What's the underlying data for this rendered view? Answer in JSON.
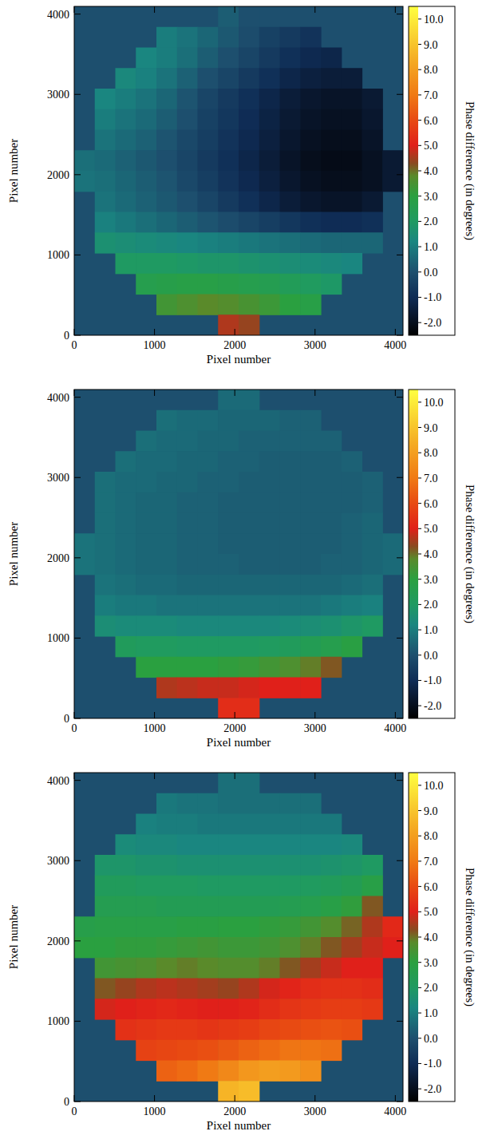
{
  "chart_data": [
    {
      "type": "heatmap",
      "xlabel": "Pixel number",
      "ylabel": "Pixel number",
      "xlim": [
        0,
        4096
      ],
      "ylim": [
        0,
        4096
      ],
      "xticks": [
        0,
        1000,
        2000,
        3000,
        4000
      ],
      "yticks": [
        0,
        1000,
        2000,
        3000,
        4000
      ],
      "x": [
        128,
        384,
        640,
        896,
        1152,
        1408,
        1664,
        1920,
        2176,
        2432,
        2688,
        2944,
        3200,
        3456,
        3712,
        3968
      ],
      "y": [
        3968,
        3712,
        3456,
        3200,
        2944,
        2688,
        2432,
        2176,
        1920,
        1664,
        1408,
        1152,
        896,
        640,
        384,
        128
      ],
      "cells": [
        [
          null,
          null,
          null,
          null,
          null,
          null,
          null,
          0.3,
          0.0,
          null,
          null,
          null,
          null,
          null,
          null,
          null
        ],
        [
          null,
          null,
          null,
          null,
          1.0,
          0.8,
          0.5,
          0.2,
          -0.1,
          -0.4,
          -0.6,
          -0.8,
          null,
          null,
          null,
          null
        ],
        [
          null,
          null,
          null,
          1.2,
          1.0,
          0.7,
          0.3,
          0.0,
          -0.3,
          -0.6,
          -0.9,
          -1.1,
          -1.2,
          null,
          null,
          null
        ],
        [
          null,
          null,
          1.3,
          1.1,
          0.8,
          0.4,
          0.0,
          -0.3,
          -0.6,
          -0.9,
          -1.2,
          -1.4,
          -1.5,
          -1.5,
          null,
          null
        ],
        [
          null,
          1.2,
          1.0,
          0.8,
          0.5,
          0.1,
          -0.3,
          -0.6,
          -0.9,
          -1.2,
          -1.5,
          -1.7,
          -1.8,
          -1.8,
          -1.6,
          null
        ],
        [
          null,
          1.0,
          0.8,
          0.6,
          0.3,
          0.0,
          -0.4,
          -0.7,
          -1.0,
          -1.3,
          -1.6,
          -1.8,
          -1.9,
          -1.9,
          -1.7,
          null
        ],
        [
          null,
          0.8,
          0.6,
          0.4,
          0.1,
          -0.2,
          -0.5,
          -0.8,
          -1.1,
          -1.4,
          -1.7,
          -1.9,
          -2.0,
          -2.0,
          -1.8,
          null
        ],
        [
          0.7,
          0.6,
          0.4,
          0.2,
          0.0,
          -0.3,
          -0.6,
          -0.9,
          -1.2,
          -1.5,
          -1.8,
          -2.0,
          -2.1,
          -2.1,
          -1.9,
          -1.6
        ],
        [
          0.8,
          0.7,
          0.5,
          0.3,
          0.1,
          -0.2,
          -0.5,
          -0.8,
          -1.1,
          -1.4,
          -1.7,
          -1.9,
          -2.0,
          -2.0,
          -1.9,
          -1.6
        ],
        [
          null,
          0.8,
          0.6,
          0.4,
          0.2,
          0.0,
          -0.3,
          -0.6,
          -0.9,
          -1.2,
          -1.5,
          -1.7,
          -1.8,
          -1.8,
          -1.6,
          null
        ],
        [
          null,
          1.1,
          0.9,
          0.7,
          0.5,
          0.3,
          0.1,
          -0.1,
          -0.3,
          -0.5,
          -0.7,
          -0.9,
          -1.0,
          -1.0,
          -0.9,
          null
        ],
        [
          null,
          1.6,
          1.5,
          1.4,
          1.3,
          1.2,
          1.1,
          1.0,
          0.9,
          0.8,
          0.7,
          0.6,
          0.5,
          0.5,
          0.5,
          null
        ],
        [
          null,
          null,
          2.0,
          2.0,
          2.0,
          1.9,
          1.8,
          1.8,
          1.7,
          1.6,
          1.5,
          1.4,
          1.3,
          1.2,
          null,
          null
        ],
        [
          null,
          null,
          null,
          2.6,
          2.7,
          2.8,
          2.8,
          2.7,
          2.6,
          2.5,
          2.3,
          2.1,
          1.9,
          null,
          null,
          null
        ],
        [
          null,
          null,
          null,
          null,
          3.4,
          3.6,
          3.8,
          3.7,
          3.5,
          3.3,
          3.0,
          2.8,
          null,
          null,
          null,
          null
        ],
        [
          null,
          null,
          null,
          null,
          null,
          null,
          null,
          4.6,
          4.4,
          null,
          null,
          null,
          null,
          null,
          null,
          null
        ]
      ],
      "colorbar_label": "Phase difference (in degrees)",
      "colorbar_range": [
        -2.5,
        10.5
      ],
      "colorbar_ticks": [
        {
          "value": -2,
          "label": "-2.0"
        },
        {
          "value": -1,
          "label": "-1.0"
        },
        {
          "value": 0,
          "label": "0.0"
        },
        {
          "value": 1,
          "label": "1.0"
        },
        {
          "value": 2,
          "label": "2.0"
        },
        {
          "value": 3,
          "label": "3.0"
        },
        {
          "value": 4,
          "label": "4.0"
        },
        {
          "value": 5,
          "label": "5.0"
        },
        {
          "value": 6,
          "label": "6.0"
        },
        {
          "value": 7,
          "label": "7.0"
        },
        {
          "value": 8,
          "label": "8.0"
        },
        {
          "value": 9,
          "label": "9.0"
        },
        {
          "value": 10,
          "label": "10.0"
        }
      ]
    },
    {
      "type": "heatmap",
      "xlabel": "Pixel number",
      "ylabel": "Pixel number",
      "xlim": [
        0,
        4096
      ],
      "ylim": [
        0,
        4096
      ],
      "xticks": [
        0,
        1000,
        2000,
        3000,
        4000
      ],
      "yticks": [
        0,
        1000,
        2000,
        3000,
        4000
      ],
      "x": [
        128,
        384,
        640,
        896,
        1152,
        1408,
        1664,
        1920,
        2176,
        2432,
        2688,
        2944,
        3200,
        3456,
        3712,
        3968
      ],
      "y": [
        3968,
        3712,
        3456,
        3200,
        2944,
        2688,
        2432,
        2176,
        1920,
        1664,
        1408,
        1152,
        896,
        640,
        384,
        128
      ],
      "cells": [
        [
          null,
          null,
          null,
          null,
          null,
          null,
          null,
          0.6,
          0.6,
          null,
          null,
          null,
          null,
          null,
          null,
          null
        ],
        [
          null,
          null,
          null,
          null,
          0.7,
          0.6,
          0.6,
          0.5,
          0.5,
          0.5,
          0.4,
          0.4,
          null,
          null,
          null,
          null
        ],
        [
          null,
          null,
          null,
          0.7,
          0.6,
          0.6,
          0.5,
          0.5,
          0.4,
          0.4,
          0.4,
          0.4,
          0.4,
          null,
          null,
          null
        ],
        [
          null,
          null,
          0.7,
          0.6,
          0.6,
          0.5,
          0.5,
          0.4,
          0.4,
          0.3,
          0.3,
          0.3,
          0.3,
          0.4,
          null,
          null
        ],
        [
          null,
          0.7,
          0.6,
          0.6,
          0.5,
          0.5,
          0.4,
          0.4,
          0.3,
          0.3,
          0.3,
          0.3,
          0.3,
          0.3,
          0.4,
          null
        ],
        [
          null,
          0.7,
          0.6,
          0.5,
          0.5,
          0.4,
          0.4,
          0.3,
          0.3,
          0.3,
          0.3,
          0.3,
          0.3,
          0.3,
          0.4,
          null
        ],
        [
          null,
          0.7,
          0.6,
          0.5,
          0.5,
          0.4,
          0.4,
          0.3,
          0.3,
          0.3,
          0.3,
          0.3,
          0.3,
          0.4,
          0.5,
          null
        ],
        [
          0.8,
          0.7,
          0.6,
          0.5,
          0.5,
          0.4,
          0.4,
          0.3,
          0.3,
          0.3,
          0.3,
          0.3,
          0.3,
          0.4,
          0.5,
          0.6
        ],
        [
          0.8,
          0.7,
          0.6,
          0.5,
          0.5,
          0.4,
          0.4,
          0.4,
          0.3,
          0.3,
          0.3,
          0.3,
          0.4,
          0.4,
          0.5,
          0.6
        ],
        [
          null,
          0.8,
          0.7,
          0.6,
          0.6,
          0.5,
          0.5,
          0.5,
          0.5,
          0.5,
          0.5,
          0.5,
          0.5,
          0.6,
          0.7,
          null
        ],
        [
          null,
          1.0,
          0.9,
          0.9,
          0.8,
          0.8,
          0.8,
          0.8,
          0.8,
          0.8,
          0.8,
          0.8,
          0.9,
          1.0,
          1.1,
          null
        ],
        [
          null,
          1.5,
          1.4,
          1.4,
          1.4,
          1.3,
          1.3,
          1.3,
          1.3,
          1.3,
          1.4,
          1.5,
          1.6,
          1.8,
          2.0,
          null
        ],
        [
          null,
          null,
          2.2,
          2.1,
          2.1,
          2.0,
          2.0,
          2.0,
          2.0,
          2.1,
          2.2,
          2.4,
          2.6,
          2.9,
          null,
          null
        ],
        [
          null,
          null,
          null,
          3.0,
          3.0,
          3.0,
          3.0,
          3.1,
          3.2,
          3.4,
          3.6,
          3.9,
          4.2,
          null,
          null,
          null
        ],
        [
          null,
          null,
          null,
          null,
          4.6,
          4.7,
          4.8,
          4.8,
          4.9,
          5.0,
          5.0,
          5.0,
          null,
          null,
          null,
          null
        ],
        [
          null,
          null,
          null,
          null,
          null,
          null,
          null,
          5.3,
          5.3,
          null,
          null,
          null,
          null,
          null,
          null,
          null
        ]
      ],
      "colorbar_label": "Phase difference (in degrees)",
      "colorbar_range": [
        -2.5,
        10.5
      ],
      "colorbar_ticks": [
        {
          "value": -2,
          "label": "-2.0"
        },
        {
          "value": -1,
          "label": "-1.0"
        },
        {
          "value": 0,
          "label": "0.0"
        },
        {
          "value": 1,
          "label": "1.0"
        },
        {
          "value": 2,
          "label": "2.0"
        },
        {
          "value": 3,
          "label": "3.0"
        },
        {
          "value": 4,
          "label": "4.0"
        },
        {
          "value": 5,
          "label": "5.0"
        },
        {
          "value": 6,
          "label": "6.0"
        },
        {
          "value": 7,
          "label": "7.0"
        },
        {
          "value": 8,
          "label": "8.0"
        },
        {
          "value": 9,
          "label": "9.0"
        },
        {
          "value": 10,
          "label": "10.0"
        }
      ]
    },
    {
      "type": "heatmap",
      "xlabel": "Pixel number",
      "ylabel": "Pixel number",
      "xlim": [
        0,
        4096
      ],
      "ylim": [
        0,
        4096
      ],
      "xticks": [
        0,
        1000,
        2000,
        3000,
        4000
      ],
      "yticks": [
        0,
        1000,
        2000,
        3000,
        4000
      ],
      "x": [
        128,
        384,
        640,
        896,
        1152,
        1408,
        1664,
        1920,
        2176,
        2432,
        2688,
        2944,
        3200,
        3456,
        3712,
        3968
      ],
      "y": [
        3968,
        3712,
        3456,
        3200,
        2944,
        2688,
        2432,
        2176,
        1920,
        1664,
        1408,
        1152,
        896,
        640,
        384,
        128
      ],
      "cells": [
        [
          null,
          null,
          null,
          null,
          null,
          null,
          null,
          0.7,
          0.7,
          null,
          null,
          null,
          null,
          null,
          null,
          null
        ],
        [
          null,
          null,
          null,
          null,
          0.9,
          0.8,
          0.8,
          0.7,
          0.7,
          0.7,
          0.7,
          0.7,
          null,
          null,
          null,
          null
        ],
        [
          null,
          null,
          null,
          1.1,
          1.0,
          1.0,
          0.9,
          0.9,
          0.9,
          0.9,
          0.9,
          0.9,
          0.9,
          null,
          null,
          null
        ],
        [
          null,
          null,
          1.4,
          1.3,
          1.3,
          1.2,
          1.2,
          1.2,
          1.2,
          1.2,
          1.2,
          1.2,
          1.2,
          1.3,
          null,
          null
        ],
        [
          null,
          1.8,
          1.8,
          1.7,
          1.7,
          1.6,
          1.6,
          1.6,
          1.6,
          1.6,
          1.6,
          1.6,
          1.7,
          1.8,
          2.0,
          null
        ],
        [
          null,
          2.2,
          2.2,
          2.1,
          2.1,
          2.1,
          2.0,
          2.0,
          2.0,
          2.0,
          2.0,
          2.1,
          2.2,
          2.4,
          2.8,
          null
        ],
        [
          null,
          2.5,
          2.5,
          2.5,
          2.4,
          2.4,
          2.4,
          2.4,
          2.4,
          2.4,
          2.5,
          2.6,
          2.8,
          3.1,
          4.2,
          null
        ],
        [
          2.7,
          2.8,
          2.8,
          2.8,
          2.8,
          2.9,
          2.9,
          3.0,
          3.0,
          3.1,
          3.2,
          3.4,
          3.7,
          4.1,
          4.6,
          5.2
        ],
        [
          3.0,
          3.0,
          3.1,
          3.1,
          3.2,
          3.3,
          3.4,
          3.3,
          3.3,
          3.4,
          3.6,
          3.9,
          4.2,
          4.5,
          4.8,
          5.0
        ],
        [
          null,
          3.4,
          3.5,
          3.6,
          3.8,
          3.9,
          3.8,
          3.7,
          3.7,
          3.9,
          4.2,
          4.5,
          4.8,
          5.0,
          5.0,
          null
        ],
        [
          null,
          4.2,
          4.4,
          4.6,
          4.7,
          4.6,
          4.5,
          4.4,
          4.6,
          4.9,
          5.1,
          5.3,
          5.4,
          5.4,
          5.3,
          null
        ],
        [
          null,
          4.9,
          5.0,
          5.1,
          5.2,
          5.1,
          5.0,
          5.0,
          5.1,
          5.3,
          5.5,
          5.6,
          5.7,
          5.7,
          5.6,
          null
        ],
        [
          null,
          null,
          5.4,
          5.5,
          5.6,
          5.6,
          5.5,
          5.6,
          5.7,
          5.9,
          6.0,
          6.1,
          6.2,
          6.1,
          null,
          null
        ],
        [
          null,
          null,
          null,
          5.8,
          5.9,
          6.0,
          6.1,
          6.3,
          6.5,
          6.7,
          6.9,
          6.9,
          6.8,
          null,
          null,
          null
        ],
        [
          null,
          null,
          null,
          null,
          6.5,
          6.7,
          7.0,
          7.4,
          7.8,
          8.0,
          7.9,
          7.6,
          null,
          null,
          null,
          null
        ],
        [
          null,
          null,
          null,
          null,
          null,
          null,
          null,
          8.6,
          8.8,
          null,
          null,
          null,
          null,
          null,
          null,
          null
        ]
      ],
      "colorbar_label": "Phase difference (in degrees)",
      "colorbar_range": [
        -2.5,
        10.5
      ],
      "colorbar_ticks": [
        {
          "value": -2,
          "label": "-2.0"
        },
        {
          "value": -1,
          "label": "-1.0"
        },
        {
          "value": 0,
          "label": "0.0"
        },
        {
          "value": 1,
          "label": "1.0"
        },
        {
          "value": 2,
          "label": "2.0"
        },
        {
          "value": 3,
          "label": "3.0"
        },
        {
          "value": 4,
          "label": "4.0"
        },
        {
          "value": 5,
          "label": "5.0"
        },
        {
          "value": 6,
          "label": "6.0"
        },
        {
          "value": 7,
          "label": "7.0"
        },
        {
          "value": 8,
          "label": "8.0"
        },
        {
          "value": 9,
          "label": "9.0"
        },
        {
          "value": 10,
          "label": "10.0"
        }
      ]
    }
  ]
}
